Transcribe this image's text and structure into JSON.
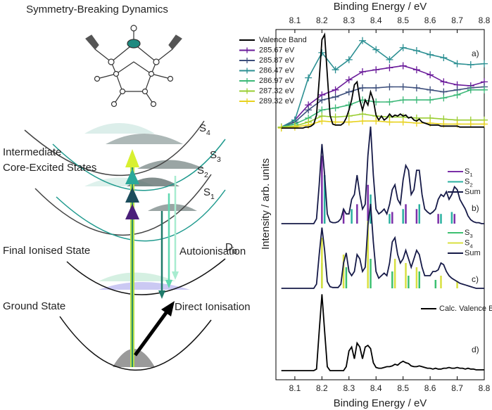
{
  "diagram": {
    "title": "Symmetry-Breaking Dynamics",
    "intermediate": [
      "Intermediate",
      "Core-Excited States"
    ],
    "final": "Final Ionised State",
    "ground": "Ground State",
    "autoionisation": "Autoionisation",
    "direct": "Direct Ionisation",
    "states": [
      {
        "base": "S",
        "sub": "4"
      },
      {
        "base": "S",
        "sub": "3"
      },
      {
        "base": "S",
        "sub": "2"
      },
      {
        "base": "S",
        "sub": "1"
      },
      {
        "base": "D",
        "sub": "0"
      }
    ]
  },
  "chart_data": {
    "type": "line",
    "x_label": "Binding Energy / eV",
    "y_label": "Intensity / arb. units",
    "xlim": [
      8.03,
      8.8
    ],
    "xticks": [
      8.1,
      8.2,
      8.3,
      8.4,
      8.5,
      8.6,
      8.7,
      8.8
    ],
    "x": [
      8.05,
      8.06,
      8.07,
      8.08,
      8.09,
      8.1,
      8.11,
      8.12,
      8.13,
      8.14,
      8.15,
      8.16,
      8.17,
      8.18,
      8.19,
      8.2,
      8.21,
      8.22,
      8.23,
      8.24,
      8.25,
      8.26,
      8.27,
      8.28,
      8.29,
      8.3,
      8.31,
      8.32,
      8.33,
      8.34,
      8.35,
      8.36,
      8.37,
      8.38,
      8.39,
      8.4,
      8.41,
      8.42,
      8.43,
      8.44,
      8.45,
      8.46,
      8.47,
      8.48,
      8.49,
      8.5,
      8.51,
      8.52,
      8.53,
      8.54,
      8.55,
      8.56,
      8.57,
      8.58,
      8.59,
      8.6,
      8.61,
      8.62,
      8.63,
      8.64,
      8.65,
      8.66,
      8.67,
      8.68,
      8.69,
      8.7,
      8.71,
      8.72,
      8.73,
      8.74,
      8.75,
      8.76,
      8.77,
      8.78,
      8.79,
      8.8
    ],
    "panels": [
      {
        "label": "a)",
        "ylim": [
          0,
          1
        ],
        "series": [
          {
            "name": "Valence Band",
            "color": "#000000",
            "style": "line",
            "values": [
              0.02,
              0.02,
              0.02,
              0.02,
              0.02,
              0.02,
              0.02,
              0.02,
              0.02,
              0.03,
              0.03,
              0.04,
              0.06,
              0.15,
              0.5,
              0.9,
              0.95,
              0.55,
              0.15,
              0.06,
              0.05,
              0.05,
              0.05,
              0.07,
              0.12,
              0.2,
              0.3,
              0.45,
              0.48,
              0.3,
              0.2,
              0.3,
              0.25,
              0.38,
              0.3,
              0.15,
              0.1,
              0.14,
              0.1,
              0.12,
              0.16,
              0.13,
              0.15,
              0.14,
              0.16,
              0.14,
              0.15,
              0.12,
              0.13,
              0.1,
              0.09,
              0.11,
              0.08,
              0.07,
              0.06,
              0.05,
              0.05,
              0.05,
              0.05,
              0.04,
              0.04,
              0.04,
              0.04,
              0.04,
              0.04,
              0.04,
              0.03,
              0.03,
              0.03,
              0.03,
              0.03,
              0.03,
              0.03,
              0.03,
              0.03,
              0.03
            ]
          },
          {
            "name": "285.67 eV",
            "color": "#6a1b9a",
            "style": "markers",
            "x": [
              8.05,
              8.1,
              8.15,
              8.2,
              8.25,
              8.3,
              8.35,
              8.4,
              8.45,
              8.5,
              8.55,
              8.6,
              8.65,
              8.7,
              8.75,
              8.8
            ],
            "values": [
              0.03,
              0.1,
              0.25,
              0.35,
              0.4,
              0.5,
              0.58,
              0.6,
              0.62,
              0.64,
              0.6,
              0.55,
              0.48,
              0.45,
              0.44,
              0.48
            ]
          },
          {
            "name": "285.87 eV",
            "color": "#3d4f7c",
            "style": "markers",
            "x": [
              8.05,
              8.1,
              8.15,
              8.2,
              8.25,
              8.3,
              8.35,
              8.4,
              8.45,
              8.5,
              8.55,
              8.6,
              8.65,
              8.7,
              8.75,
              8.8
            ],
            "values": [
              0.03,
              0.08,
              0.2,
              0.3,
              0.33,
              0.38,
              0.42,
              0.42,
              0.43,
              0.43,
              0.42,
              0.4,
              0.38,
              0.4,
              0.42,
              0.43
            ]
          },
          {
            "name": "286.47 eV",
            "color": "#2b8f92",
            "style": "markers",
            "x": [
              8.05,
              8.1,
              8.15,
              8.2,
              8.25,
              8.3,
              8.35,
              8.4,
              8.45,
              8.5,
              8.55,
              8.6,
              8.65,
              8.7,
              8.75,
              8.8
            ],
            "values": [
              0.03,
              0.1,
              0.52,
              0.77,
              0.6,
              0.7,
              0.89,
              0.8,
              0.7,
              0.82,
              0.79,
              0.75,
              0.72,
              0.66,
              0.65,
              0.66
            ]
          },
          {
            "name": "286.97 eV",
            "color": "#3cb878",
            "style": "markers",
            "x": [
              8.05,
              8.1,
              8.15,
              8.2,
              8.25,
              8.3,
              8.35,
              8.4,
              8.45,
              8.5,
              8.55,
              8.6,
              8.65,
              8.7,
              8.75,
              8.8
            ],
            "values": [
              0.03,
              0.06,
              0.12,
              0.2,
              0.22,
              0.25,
              0.3,
              0.28,
              0.28,
              0.3,
              0.3,
              0.3,
              0.32,
              0.35,
              0.4,
              0.4
            ]
          },
          {
            "name": "287.32 eV",
            "color": "#9acd32",
            "style": "markers",
            "x": [
              8.05,
              8.1,
              8.15,
              8.2,
              8.25,
              8.3,
              8.35,
              8.4,
              8.45,
              8.5,
              8.55,
              8.6,
              8.65,
              8.7,
              8.75,
              8.8
            ],
            "values": [
              0.03,
              0.04,
              0.08,
              0.14,
              0.13,
              0.14,
              0.16,
              0.14,
              0.13,
              0.13,
              0.12,
              0.12,
              0.11,
              0.1,
              0.1,
              0.1
            ]
          },
          {
            "name": "289.32 eV",
            "color": "#e8d21f",
            "style": "markers",
            "x": [
              8.05,
              8.1,
              8.15,
              8.2,
              8.25,
              8.3,
              8.35,
              8.4,
              8.45,
              8.5,
              8.55,
              8.6,
              8.65,
              8.7,
              8.75,
              8.8
            ],
            "values": [
              0.02,
              0.03,
              0.05,
              0.09,
              0.08,
              0.08,
              0.09,
              0.09,
              0.08,
              0.08,
              0.07,
              0.07,
              0.06,
              0.06,
              0.06,
              0.06
            ]
          }
        ]
      },
      {
        "label": "b)",
        "ylim": [
          0,
          1
        ],
        "series": [
          {
            "name": "S",
            "name_sub": "1",
            "color": "#7b2fa8",
            "style": "sticks",
            "x": [
              8.2,
              8.28,
              8.33,
              8.37,
              8.46,
              8.51,
              8.55,
              8.63,
              8.69
            ],
            "values": [
              0.7,
              0.15,
              0.2,
              0.4,
              0.12,
              0.2,
              0.15,
              0.1,
              0.1
            ]
          },
          {
            "name": "S",
            "name_sub": "2",
            "color": "#2ab0a0",
            "style": "sticks",
            "x": [
              8.21,
              8.31,
              8.38,
              8.45,
              8.5,
              8.56,
              8.64,
              8.68
            ],
            "values": [
              0.5,
              0.15,
              0.3,
              0.1,
              0.15,
              0.2,
              0.1,
              0.12
            ]
          },
          {
            "name": "Sum",
            "color": "#161a48",
            "style": "line",
            "values": [
              0,
              0,
              0,
              0,
              0,
              0,
              0,
              0,
              0,
              0,
              0,
              0,
              0,
              0.05,
              0.4,
              0.82,
              0.5,
              0.1,
              0.02,
              0.01,
              0.01,
              0.02,
              0.05,
              0.15,
              0.1,
              0.1,
              0.25,
              0.3,
              0.5,
              0.3,
              0.15,
              0.2,
              0.7,
              1,
              0.5,
              0.15,
              0.1,
              0.12,
              0.15,
              0.1,
              0.2,
              0.35,
              0.4,
              0.25,
              0.2,
              0.45,
              0.6,
              0.55,
              0.3,
              0.35,
              0.55,
              0.55,
              0.3,
              0.15,
              0.12,
              0.1,
              0.12,
              0.15,
              0.25,
              0.3,
              0.28,
              0.33,
              0.25,
              0.3,
              0.38,
              0.35,
              0.25,
              0.2,
              0.15,
              0.08,
              0.04,
              0.02,
              0.01,
              0.01,
              0,
              0
            ]
          }
        ]
      },
      {
        "label": "c)",
        "ylim": [
          0,
          1
        ],
        "series": [
          {
            "name": "S",
            "name_sub": "3",
            "color": "#3cc070",
            "style": "sticks",
            "x": [
              8.2,
              8.29,
              8.38,
              8.46,
              8.52,
              8.56,
              8.62
            ],
            "values": [
              0.3,
              0.25,
              0.35,
              0.2,
              0.15,
              0.2,
              0.1
            ]
          },
          {
            "name": "S",
            "name_sub": "4",
            "color": "#d8e040",
            "style": "sticks",
            "x": [
              8.2,
              8.28,
              8.37,
              8.47,
              8.51,
              8.55,
              8.64,
              8.7
            ],
            "values": [
              0.6,
              0.4,
              0.8,
              0.35,
              0.3,
              0.25,
              0.15,
              0.08
            ]
          },
          {
            "name": "Sum",
            "color": "#161a48",
            "style": "line",
            "values": [
              0,
              0,
              0,
              0,
              0,
              0,
              0,
              0,
              0,
              0,
              0,
              0,
              0,
              0.05,
              0.4,
              0.72,
              0.45,
              0.08,
              0.02,
              0.01,
              0.01,
              0.01,
              0.05,
              0.3,
              0.42,
              0.2,
              0.15,
              0.2,
              0.4,
              0.35,
              0.2,
              0.25,
              0.75,
              1,
              0.55,
              0.2,
              0.12,
              0.15,
              0.18,
              0.15,
              0.3,
              0.55,
              0.6,
              0.4,
              0.3,
              0.35,
              0.45,
              0.35,
              0.25,
              0.35,
              0.45,
              0.4,
              0.25,
              0.15,
              0.15,
              0.15,
              0.2,
              0.2,
              0.22,
              0.3,
              0.28,
              0.2,
              0.15,
              0.12,
              0.1,
              0.08,
              0.06,
              0.05,
              0.04,
              0.03,
              0.02,
              0.01,
              0,
              0,
              0,
              0
            ]
          }
        ]
      },
      {
        "label": "d)",
        "ylim": [
          0,
          1
        ],
        "series": [
          {
            "name": "Calc. Valence Band",
            "color": "#000000",
            "style": "line",
            "values": [
              0,
              0,
              0,
              0,
              0,
              0,
              0,
              0,
              0,
              0,
              0,
              0,
              0,
              0.02,
              0.5,
              0.97,
              0.5,
              0.05,
              0,
              0,
              0,
              0,
              0,
              0,
              0.05,
              0.25,
              0.3,
              0.15,
              0.35,
              0.3,
              0.15,
              0.3,
              0.32,
              0.28,
              0.1,
              0.04,
              0.03,
              0.03,
              0.04,
              0.05,
              0.05,
              0.06,
              0.08,
              0.07,
              0.1,
              0.12,
              0.1,
              0.09,
              0.06,
              0.05,
              0.05,
              0.06,
              0.05,
              0.04,
              0.03,
              0.03,
              0.02,
              0.03,
              0.02,
              0.02,
              0.03,
              0.03,
              0.04,
              0.03,
              0.03,
              0.04,
              0.03,
              0.03,
              0.02,
              0.03,
              0.02,
              0.02,
              0.01,
              0.01,
              0.01,
              0.01
            ]
          }
        ]
      }
    ]
  }
}
